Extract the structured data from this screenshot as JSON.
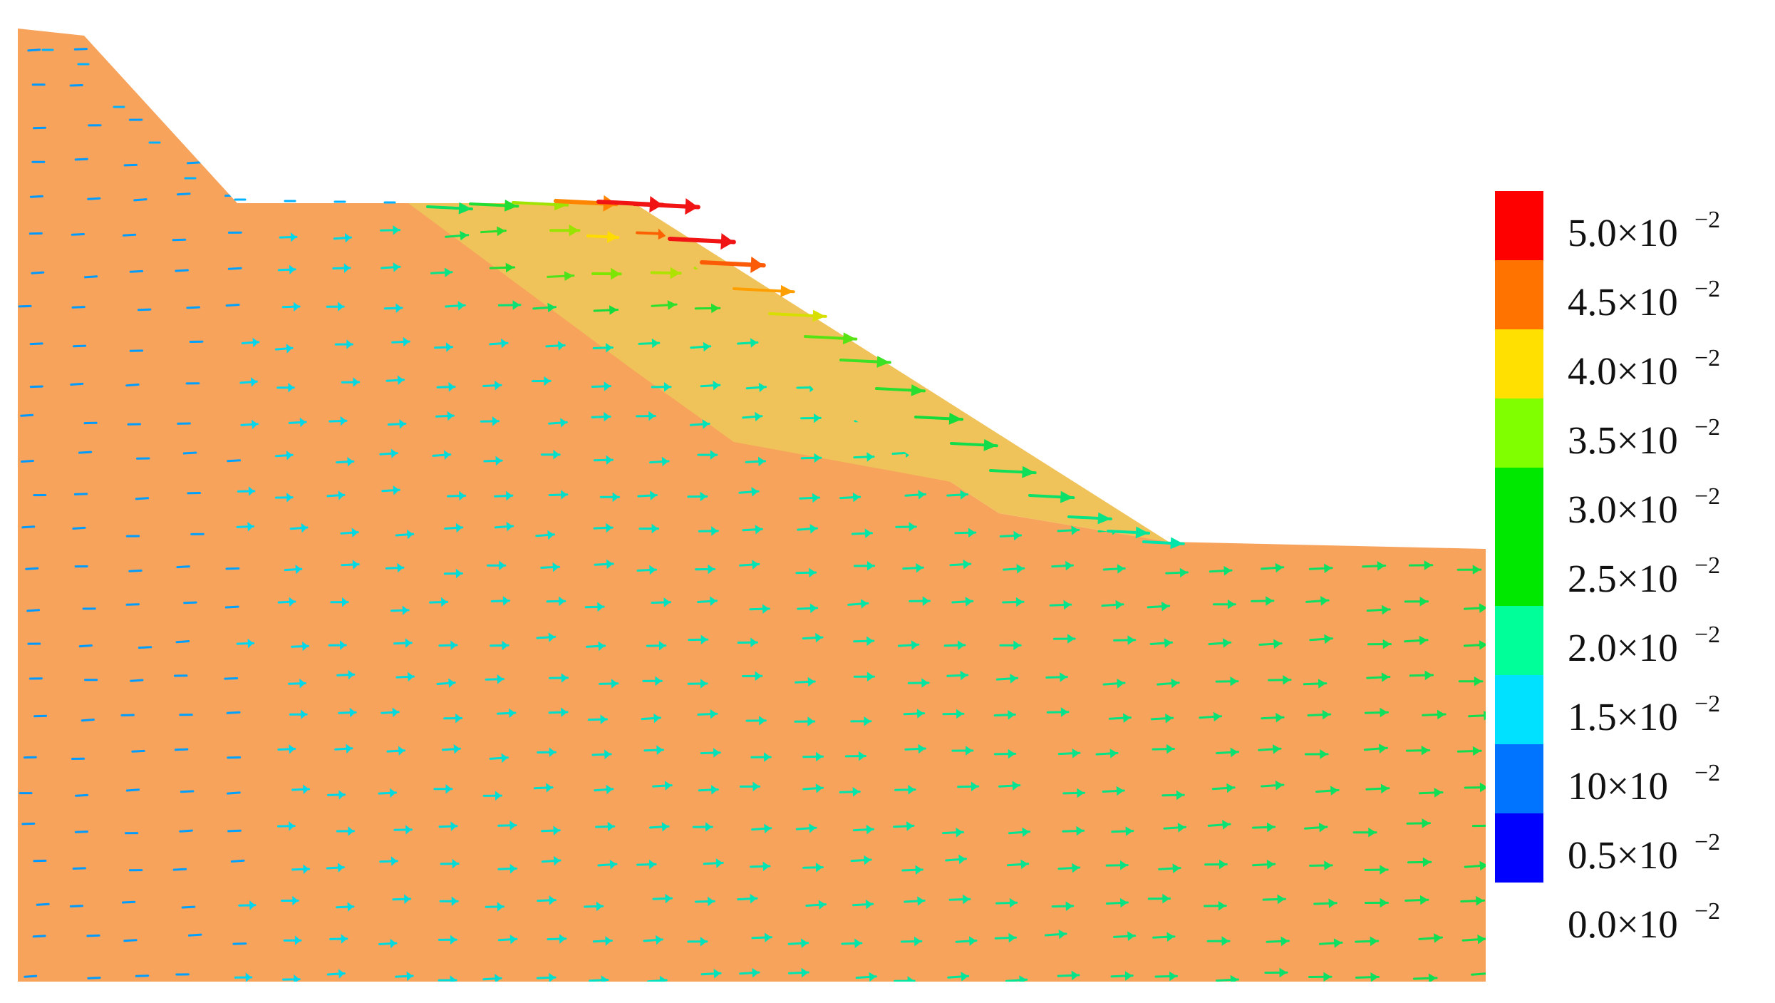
{
  "colors": {
    "ground": "#F7A35C",
    "sliding_mass": "#F0C35A",
    "background": "#FFFFFF"
  },
  "legend": {
    "entries": [
      {
        "mantissa": "5.0×10",
        "exponent": "−2",
        "color": "#FF0000"
      },
      {
        "mantissa": "4.5×10",
        "exponent": "−2",
        "color": "#FF7300"
      },
      {
        "mantissa": "4.0×10",
        "exponent": "−2",
        "color": "#FFE000"
      },
      {
        "mantissa": "3.5×10",
        "exponent": "−2",
        "color": "#7FFF00"
      },
      {
        "mantissa": "3.0×10",
        "exponent": "−2",
        "color": "#00E800"
      },
      {
        "mantissa": "2.5×10",
        "exponent": "−2",
        "color": "#00E800"
      },
      {
        "mantissa": "2.0×10",
        "exponent": "−2",
        "color": "#00FF99"
      },
      {
        "mantissa": "1.5×10",
        "exponent": "−2",
        "color": "#00E0FF"
      },
      {
        "mantissa": "10×10",
        "exponent": "−2",
        "color": "#0073FF"
      },
      {
        "mantissa": "0.5×10",
        "exponent": "−2",
        "color": "#0000FF"
      },
      {
        "mantissa": "0.0×10",
        "exponent": "−2",
        "color": "#0000FF"
      }
    ]
  }
}
